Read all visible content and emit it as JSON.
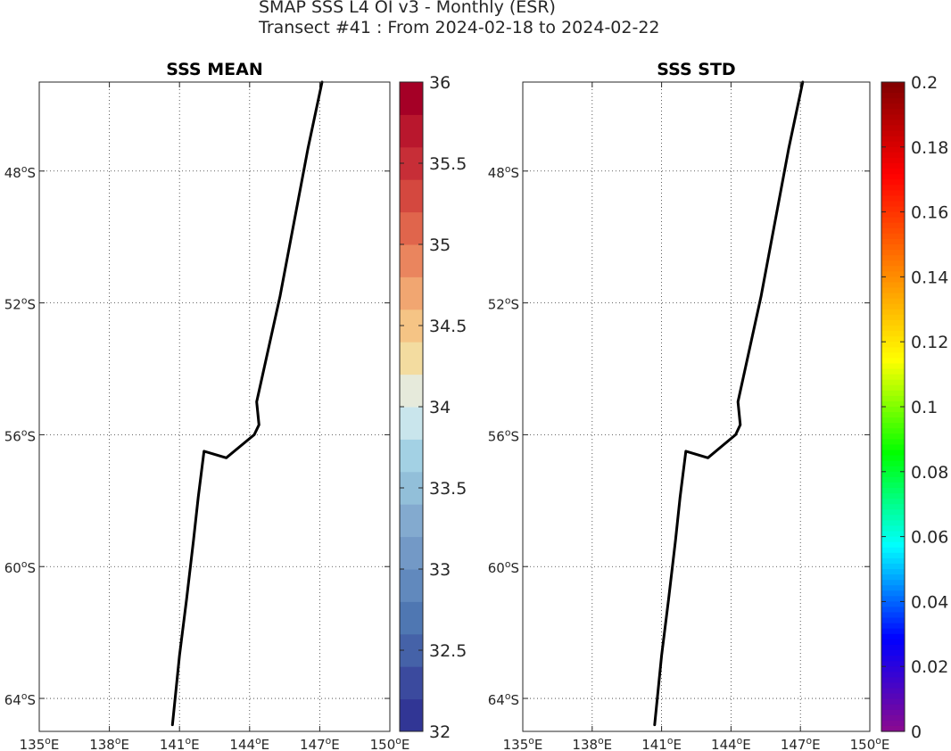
{
  "figure": {
    "title_line1": "SMAP SSS L4 OI v3 - Monthly (ESR)",
    "title_line2": "Transect #41 : From 2024-02-18 to 2024-02-22"
  },
  "chart_data": [
    {
      "type": "line",
      "title": "SSS MEAN",
      "xlim": [
        135,
        150
      ],
      "xticks": [
        135,
        138,
        141,
        144,
        147,
        150
      ],
      "xtick_labels": [
        "135°E",
        "138°E",
        "141°E",
        "144°E",
        "147°E",
        "150°E"
      ],
      "ylim": [
        -65,
        -45.3
      ],
      "yticks": [
        -48,
        -52,
        -56,
        -60,
        -64
      ],
      "ytick_labels": [
        "48°S",
        "52°S",
        "56°S",
        "60°S",
        "64°S"
      ],
      "grid": true,
      "series": [
        {
          "color": "#000000",
          "points": [
            [
              140.7,
              -64.8
            ],
            [
              141.0,
              -62.7
            ],
            [
              141.3,
              -61.0
            ],
            [
              141.6,
              -59.2
            ],
            [
              141.8,
              -57.9
            ],
            [
              142.05,
              -56.5
            ],
            [
              143.0,
              -56.7
            ],
            [
              144.2,
              -56.0
            ],
            [
              144.4,
              -55.7
            ],
            [
              144.3,
              -55.0
            ],
            [
              145.3,
              -51.8
            ],
            [
              146.5,
              -47.3
            ],
            [
              147.1,
              -45.3
            ]
          ]
        }
      ],
      "colorbar": {
        "min": 32,
        "max": 36,
        "levels": 20,
        "ticks": [
          32,
          32.5,
          33,
          33.5,
          34,
          34.5,
          35,
          35.5,
          36
        ],
        "tick_labels": [
          "32",
          "32.5",
          "33",
          "33.5",
          "34",
          "34.5",
          "35",
          "35.5",
          "36"
        ],
        "colormap": "RdYlBu_r",
        "colors": [
          "#313695",
          "#3b4a9e",
          "#4562a8",
          "#4f77b2",
          "#6189bd",
          "#7399c6",
          "#83aacf",
          "#92bfd9",
          "#a3d1e4",
          "#c9e5ec",
          "#e6eadb",
          "#f3dca0",
          "#f5c485",
          "#f1a671",
          "#ea855e",
          "#e0654c",
          "#d4483f",
          "#c72e37",
          "#b9172d",
          "#a50026"
        ]
      }
    },
    {
      "type": "line",
      "title": "SSS STD",
      "xlim": [
        135,
        150
      ],
      "xticks": [
        135,
        138,
        141,
        144,
        147,
        150
      ],
      "xtick_labels": [
        "135°E",
        "138°E",
        "141°E",
        "144°E",
        "147°E",
        "150°E"
      ],
      "ylim": [
        -65,
        -45.3
      ],
      "yticks": [
        -48,
        -52,
        -56,
        -60,
        -64
      ],
      "ytick_labels": [
        "48°S",
        "52°S",
        "56°S",
        "60°S",
        "64°S"
      ],
      "grid": true,
      "series": [
        {
          "color": "#000000",
          "points": [
            [
              140.7,
              -64.8
            ],
            [
              141.0,
              -62.7
            ],
            [
              141.3,
              -61.0
            ],
            [
              141.6,
              -59.2
            ],
            [
              141.8,
              -57.9
            ],
            [
              142.05,
              -56.5
            ],
            [
              143.0,
              -56.7
            ],
            [
              144.2,
              -56.0
            ],
            [
              144.4,
              -55.7
            ],
            [
              144.3,
              -55.0
            ],
            [
              145.3,
              -51.8
            ],
            [
              146.5,
              -47.3
            ],
            [
              147.1,
              -45.3
            ]
          ]
        }
      ],
      "colorbar": {
        "min": 0,
        "max": 0.2,
        "ticks": [
          0,
          0.02,
          0.04,
          0.06,
          0.08,
          0.1,
          0.12,
          0.14,
          0.16,
          0.18,
          0.2
        ],
        "tick_labels": [
          "0",
          "0.02",
          "0.04",
          "0.06",
          "0.08",
          "0.1",
          "0.12",
          "0.14",
          "0.16",
          "0.18",
          "0.2"
        ],
        "colormap": "jet-like",
        "colors": [
          "#8b0a8f",
          "#0000ff",
          "#00ffff",
          "#00ff00",
          "#ffff00",
          "#ff8000",
          "#ff0000",
          "#800000"
        ]
      }
    }
  ]
}
